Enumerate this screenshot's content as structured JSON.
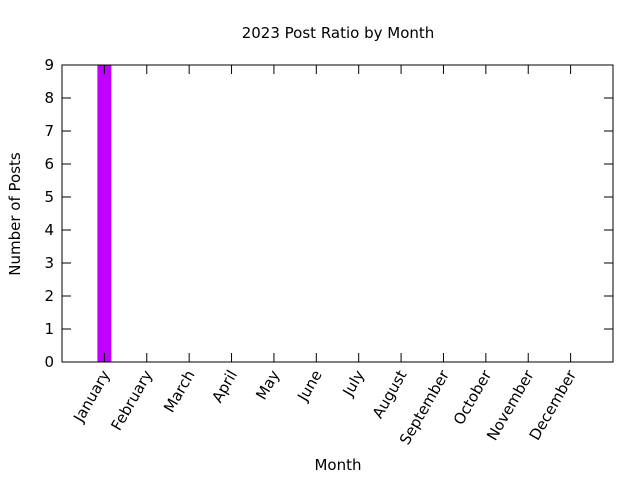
{
  "chart_data": {
    "type": "bar",
    "title": "2023 Post Ratio by Month",
    "xlabel": "Month",
    "ylabel": "Number of Posts",
    "categories": [
      "January",
      "February",
      "March",
      "April",
      "May",
      "June",
      "July",
      "August",
      "September",
      "October",
      "November",
      "December"
    ],
    "series": [
      {
        "values": [
          9,
          0,
          0,
          0,
          0,
          0,
          0,
          0,
          0,
          0,
          0,
          0
        ],
        "color": "#bf00ff"
      }
    ],
    "ylim": [
      0,
      9
    ],
    "yticks": [
      0,
      1,
      2,
      3,
      4,
      5,
      6,
      7,
      8,
      9
    ],
    "grid": false,
    "legend": "none"
  }
}
